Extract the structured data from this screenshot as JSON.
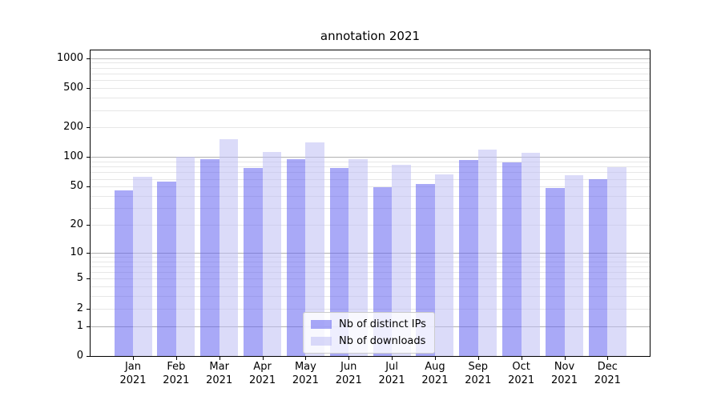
{
  "title": "annotation 2021",
  "legend": {
    "items": [
      {
        "label": "Nb of distinct IPs",
        "color_key": "ips"
      },
      {
        "label": "Nb of downloads",
        "color_key": "downloads"
      }
    ]
  },
  "colors": {
    "ips": "rgba(99,99,240,0.55)",
    "downloads": "rgba(190,190,244,0.55)",
    "ips_flat": "#a9a9f7",
    "downloads_flat": "#dbdbf9",
    "grid_major": "#b0b0b0",
    "grid_minor": "#e7e7e7",
    "axis": "#000000"
  },
  "chart_data": {
    "type": "bar",
    "title": "annotation 2021",
    "months": [
      "Jan",
      "Feb",
      "Mar",
      "Apr",
      "May",
      "Jun",
      "Jul",
      "Aug",
      "Sep",
      "Oct",
      "Nov",
      "Dec"
    ],
    "year_label": "2021",
    "categories": [
      "Jan 2021",
      "Feb 2021",
      "Mar 2021",
      "Apr 2021",
      "May 2021",
      "Jun 2021",
      "Jul 2021",
      "Aug 2021",
      "Sep 2021",
      "Oct 2021",
      "Nov 2021",
      "Dec 2021"
    ],
    "series": [
      {
        "name": "Nb of distinct IPs",
        "values": [
          46,
          56,
          95,
          78,
          95,
          77,
          49,
          53,
          94,
          89,
          48,
          60
        ]
      },
      {
        "name": "Nb of downloads",
        "values": [
          63,
          100,
          152,
          112,
          141,
          96,
          84,
          67,
          120,
          110,
          66,
          79
        ]
      }
    ],
    "yscale": "log1p",
    "ylim": [
      0,
      1200
    ],
    "yticks": [
      0,
      1,
      2,
      5,
      10,
      20,
      50,
      100,
      200,
      500,
      1000
    ],
    "ytick_labels": [
      "0",
      "1",
      "2",
      "5",
      "10",
      "20",
      "50",
      "100",
      "200",
      "500",
      "1000"
    ],
    "grid": true,
    "legend_position": "lower center"
  }
}
